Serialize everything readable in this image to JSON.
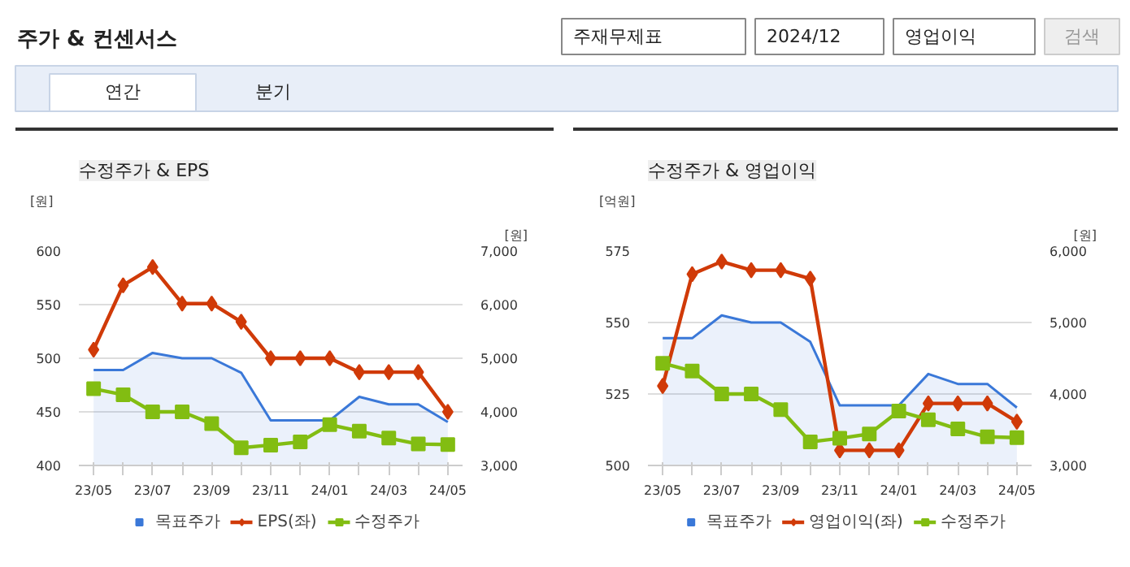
{
  "chart_data": [
    {
      "type": "other",
      "title": "주가 & 컨센서스",
      "annotations": [
        "주재무제표",
        "2024/12",
        "영업이익",
        "검색",
        "연간",
        "분기"
      ]
    },
    {
      "type": "line",
      "title": "수정주가 & EPS",
      "ylabel": "[원]",
      "y2label": "[원]",
      "categories": [
        "23/05",
        null,
        "23/07",
        null,
        "23/09",
        null,
        "23/11",
        null,
        "24/01",
        null,
        "24/03",
        null,
        "24/05"
      ],
      "ylim": [
        400,
        600
      ],
      "yticks": [
        400,
        450,
        500,
        550,
        600
      ],
      "y2lim": [
        3000,
        7000
      ],
      "y2ticks": [
        {
          "value": 3000,
          "label": "3,000"
        },
        {
          "value": 4000,
          "label": "4,000"
        },
        {
          "value": 5000,
          "label": "5,000"
        },
        {
          "value": 6000,
          "label": "6,000"
        },
        {
          "value": 7000,
          "label": "7,000"
        }
      ],
      "grid": "y",
      "legend": "bottom",
      "series": [
        {
          "name": "목표주가",
          "type": "area",
          "axis": "y2",
          "color": "#3a78d8",
          "marker": "none",
          "values": [
            4780,
            4780,
            5100,
            5000,
            5000,
            4730,
            3840,
            3840,
            3840,
            4280,
            4140,
            4140,
            3810
          ]
        },
        {
          "name": "EPS(좌)",
          "type": "line",
          "color": "#d03a08",
          "marker": "diamond",
          "values": [
            508,
            568,
            585,
            551,
            551,
            534,
            500,
            500,
            500,
            487,
            487,
            487,
            450
          ]
        },
        {
          "name": "수정주가",
          "type": "line",
          "axis": "y2",
          "color": "#82bd12",
          "marker": "square",
          "values": [
            4430,
            4320,
            4000,
            4000,
            3780,
            3330,
            3380,
            3440,
            3760,
            3640,
            3510,
            3400,
            3390
          ]
        }
      ]
    },
    {
      "type": "line",
      "title": "수정주가 & 영업이익",
      "ylabel": "[억원]",
      "y2label": "[원]",
      "categories": [
        "23/05",
        null,
        "23/07",
        null,
        "23/09",
        null,
        "23/11",
        null,
        "24/01",
        null,
        "24/03",
        null,
        "24/05"
      ],
      "ylim": [
        500,
        575
      ],
      "yticks": [
        500,
        525,
        550,
        575
      ],
      "y2lim": [
        3000,
        6000
      ],
      "y2ticks": [
        {
          "value": 3000,
          "label": "3,000"
        },
        {
          "value": 4000,
          "label": "4,000"
        },
        {
          "value": 5000,
          "label": "5,000"
        },
        {
          "value": 6000,
          "label": "6,000"
        }
      ],
      "grid": "y",
      "legend": "bottom",
      "series": [
        {
          "name": "목표주가",
          "type": "area",
          "axis": "y2",
          "color": "#3a78d8",
          "marker": "none",
          "values": [
            4780,
            4780,
            5100,
            5000,
            5000,
            4730,
            3840,
            3840,
            3840,
            4280,
            4140,
            4140,
            3810
          ]
        },
        {
          "name": "영업이익(좌)",
          "type": "line",
          "color": "#d03a08",
          "marker": "diamond",
          "values": [
            527.8,
            566.9,
            571.3,
            568.3,
            568.3,
            565.3,
            505.3,
            505.3,
            505.3,
            521.7,
            521.7,
            521.7,
            515.3
          ]
        },
        {
          "name": "수정주가",
          "type": "line",
          "axis": "y2",
          "color": "#82bd12",
          "marker": "square",
          "values": [
            4430,
            4320,
            4000,
            4000,
            3780,
            3330,
            3380,
            3440,
            3760,
            3640,
            3510,
            3400,
            3390
          ]
        }
      ]
    }
  ]
}
